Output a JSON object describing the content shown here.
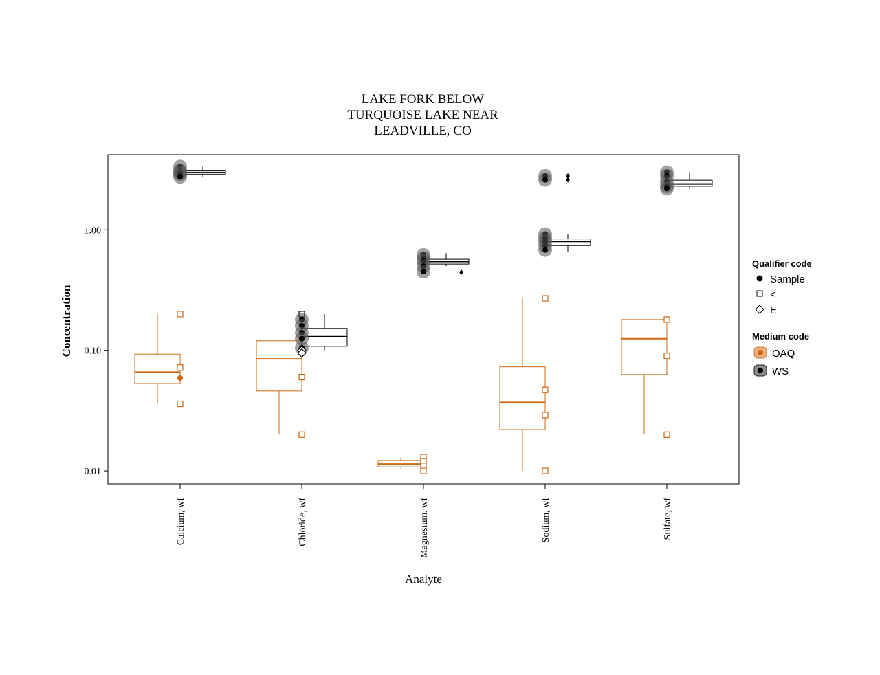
{
  "chart_data": {
    "type": "box",
    "title_lines": [
      "LAKE FORK BELOW",
      "TURQUOISE LAKE NEAR",
      "LEADVILLE, CO"
    ],
    "xlabel": "Analyte",
    "ylabel": "Concentration",
    "y_scale": "log",
    "ylim": [
      0.0078,
      4.2
    ],
    "y_ticks": [
      {
        "value": 0.01,
        "label": "0.01"
      },
      {
        "value": 0.1,
        "label": "0.10"
      },
      {
        "value": 1,
        "label": "1.00"
      }
    ],
    "categories": [
      "Calcium, wf",
      "Chloride, wf",
      "Magnesium, wf",
      "Sodium, wf",
      "Sulfate, wf"
    ],
    "colors": {
      "OAQ": "#cc6611",
      "WS": "#000000",
      "WS_halo": "#555555"
    },
    "series": [
      {
        "name": "OAQ",
        "boxes": [
          {
            "whisker_low": 0.036,
            "q1": 0.053,
            "median": 0.066,
            "q3": 0.093,
            "whisker_high": 0.2
          },
          {
            "whisker_low": 0.02,
            "q1": 0.046,
            "median": 0.085,
            "q3": 0.12,
            "whisker_high": 0.12
          },
          {
            "whisker_low": 0.0105,
            "q1": 0.0108,
            "median": 0.0114,
            "q3": 0.0122,
            "whisker_high": 0.0128
          },
          {
            "whisker_low": 0.01,
            "q1": 0.022,
            "median": 0.037,
            "q3": 0.073,
            "whisker_high": 0.27
          },
          {
            "whisker_low": 0.02,
            "q1": 0.063,
            "median": 0.125,
            "q3": 0.18,
            "whisker_high": 0.18
          }
        ],
        "points": [
          {
            "category": 0,
            "value": 0.2,
            "qualifier": "<"
          },
          {
            "category": 0,
            "value": 0.072,
            "qualifier": "<"
          },
          {
            "category": 0,
            "value": 0.059,
            "qualifier": "Sample"
          },
          {
            "category": 0,
            "value": 0.036,
            "qualifier": "<"
          },
          {
            "category": 1,
            "value": 0.06,
            "qualifier": "<"
          },
          {
            "category": 1,
            "value": 0.02,
            "qualifier": "<"
          },
          {
            "category": 2,
            "value": 0.013,
            "qualifier": "<"
          },
          {
            "category": 2,
            "value": 0.012,
            "qualifier": "<"
          },
          {
            "category": 2,
            "value": 0.011,
            "qualifier": "<"
          },
          {
            "category": 2,
            "value": 0.01,
            "qualifier": "<"
          },
          {
            "category": 3,
            "value": 0.27,
            "qualifier": "<"
          },
          {
            "category": 3,
            "value": 0.047,
            "qualifier": "<"
          },
          {
            "category": 3,
            "value": 0.029,
            "qualifier": "<"
          },
          {
            "category": 3,
            "value": 0.01,
            "qualifier": "<"
          },
          {
            "category": 4,
            "value": 0.18,
            "qualifier": "<"
          },
          {
            "category": 4,
            "value": 0.09,
            "qualifier": "<"
          },
          {
            "category": 4,
            "value": 0.02,
            "qualifier": "<"
          }
        ]
      },
      {
        "name": "WS",
        "boxes": [
          {
            "whisker_low": 2.75,
            "q1": 2.88,
            "median": 2.98,
            "q3": 3.08,
            "whisker_high": 3.35
          },
          {
            "whisker_low": 0.1,
            "q1": 0.108,
            "median": 0.13,
            "q3": 0.152,
            "whisker_high": 0.2
          },
          {
            "whisker_low": 0.5,
            "q1": 0.52,
            "median": 0.545,
            "q3": 0.57,
            "whisker_high": 0.64
          },
          {
            "whisker_low": 0.66,
            "q1": 0.74,
            "median": 0.8,
            "q3": 0.84,
            "whisker_high": 0.92
          },
          {
            "whisker_low": 2.2,
            "q1": 2.3,
            "median": 2.4,
            "q3": 2.58,
            "whisker_high": 3.0
          }
        ],
        "points": [
          {
            "category": 0,
            "value": 3.35,
            "qualifier": "Sample"
          },
          {
            "category": 0,
            "value": 3.1,
            "qualifier": "Sample"
          },
          {
            "category": 0,
            "value": 3.0,
            "qualifier": "Sample"
          },
          {
            "category": 0,
            "value": 2.9,
            "qualifier": "Sample"
          },
          {
            "category": 0,
            "value": 2.75,
            "qualifier": "Sample"
          },
          {
            "category": 1,
            "value": 0.2,
            "qualifier": "<"
          },
          {
            "category": 1,
            "value": 0.18,
            "qualifier": "Sample"
          },
          {
            "category": 1,
            "value": 0.16,
            "qualifier": "Sample"
          },
          {
            "category": 1,
            "value": 0.14,
            "qualifier": "Sample"
          },
          {
            "category": 1,
            "value": 0.125,
            "qualifier": "Sample"
          },
          {
            "category": 1,
            "value": 0.105,
            "qualifier": "Sample"
          },
          {
            "category": 1,
            "value": 0.1,
            "qualifier": "E"
          },
          {
            "category": 1,
            "value": 0.095,
            "qualifier": "E"
          },
          {
            "category": 2,
            "value": 0.62,
            "qualifier": "Sample"
          },
          {
            "category": 2,
            "value": 0.58,
            "qualifier": "Sample"
          },
          {
            "category": 2,
            "value": 0.55,
            "qualifier": "Sample"
          },
          {
            "category": 2,
            "value": 0.5,
            "qualifier": "Sample"
          },
          {
            "category": 2,
            "value": 0.45,
            "qualifier": "Sample"
          },
          {
            "category": 2,
            "value": 0.445,
            "qualifier": "Sample",
            "offset": "outlier"
          },
          {
            "category": 3,
            "value": 2.8,
            "qualifier": "Sample"
          },
          {
            "category": 3,
            "value": 2.6,
            "qualifier": "Sample"
          },
          {
            "category": 3,
            "value": 2.8,
            "qualifier": "Sample",
            "offset": "outlier"
          },
          {
            "category": 3,
            "value": 2.6,
            "qualifier": "Sample",
            "offset": "outlier"
          },
          {
            "category": 3,
            "value": 0.92,
            "qualifier": "Sample"
          },
          {
            "category": 3,
            "value": 0.85,
            "qualifier": "Sample"
          },
          {
            "category": 3,
            "value": 0.8,
            "qualifier": "Sample"
          },
          {
            "category": 3,
            "value": 0.74,
            "qualifier": "Sample"
          },
          {
            "category": 3,
            "value": 0.68,
            "qualifier": "Sample"
          },
          {
            "category": 4,
            "value": 3.0,
            "qualifier": "Sample"
          },
          {
            "category": 4,
            "value": 2.8,
            "qualifier": "Sample"
          },
          {
            "category": 4,
            "value": 2.5,
            "qualifier": "Sample"
          },
          {
            "category": 4,
            "value": 2.3,
            "qualifier": "Sample"
          },
          {
            "category": 4,
            "value": 2.2,
            "qualifier": "Sample"
          }
        ]
      }
    ],
    "legend": {
      "placement": "right",
      "qualifier_title": "Qualifier code",
      "qualifier_items": [
        "Sample",
        "<",
        "E"
      ],
      "medium_title": "Medium code",
      "medium_items": [
        "OAQ",
        "WS"
      ]
    }
  }
}
